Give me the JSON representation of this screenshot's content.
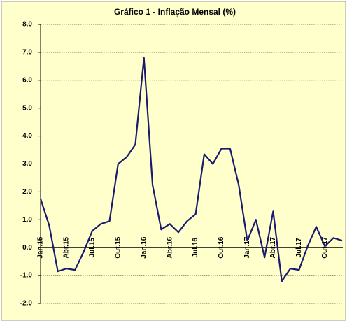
{
  "chart_data": {
    "type": "line",
    "title": "Gráfico 1 - Inflação Mensal (%)",
    "categories": [
      "Jan.15",
      null,
      null,
      "Abr.15",
      null,
      null,
      "Jul.15",
      null,
      null,
      "Out.15",
      null,
      null,
      "Jan.16",
      null,
      null,
      "Abr.16",
      null,
      null,
      "Jul.16",
      null,
      null,
      "Out.16",
      null,
      null,
      "Jan.17",
      null,
      null,
      "Abr.17",
      null,
      null,
      "Jul.17",
      null,
      null,
      "Out.17",
      null,
      null
    ],
    "series": [
      {
        "color": "#1a1a6e",
        "values": [
          1.75,
          0.8,
          -0.85,
          -0.75,
          -0.8,
          -0.15,
          0.6,
          0.85,
          0.95,
          3.0,
          3.25,
          3.7,
          6.8,
          2.25,
          0.65,
          0.85,
          0.55,
          0.95,
          1.2,
          3.35,
          3.0,
          3.55,
          3.55,
          2.25,
          0.25,
          1.0,
          -0.35,
          1.3,
          -1.2,
          -0.75,
          -0.8,
          0.05,
          0.75,
          0.05,
          0.35,
          0.25
        ]
      }
    ],
    "ylim": [
      -2,
      8
    ],
    "yticks": [
      {
        "value": -2,
        "label": "-2.0"
      },
      {
        "value": -1,
        "label": "-1.0"
      },
      {
        "value": 0,
        "label": "0.0"
      },
      {
        "value": 1,
        "label": "1.0"
      },
      {
        "value": 2,
        "label": "2.0"
      },
      {
        "value": 3,
        "label": "3.0"
      },
      {
        "value": 4,
        "label": "4.0"
      },
      {
        "value": 5,
        "label": "5.0"
      },
      {
        "value": 6,
        "label": "6.0"
      },
      {
        "value": 7,
        "label": "7.0"
      },
      {
        "value": 8,
        "label": "8.0"
      }
    ],
    "grid": true
  }
}
